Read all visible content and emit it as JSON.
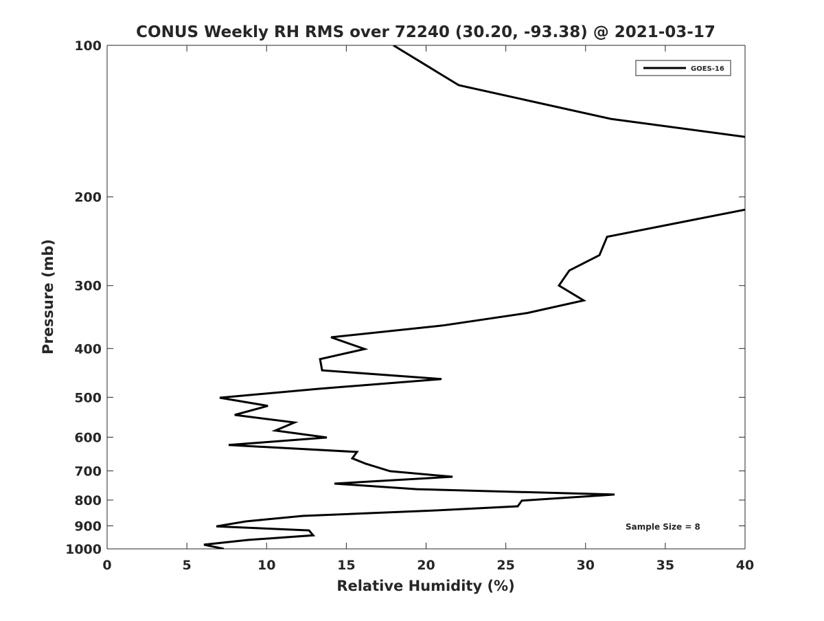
{
  "chart_data": {
    "type": "line",
    "title": "CONUS Weekly RH RMS over 72240 (30.20, -93.38) @ 2021-03-17",
    "xlabel": "Relative Humidity (%)",
    "ylabel": "Pressure (mb)",
    "xlim": [
      0,
      40
    ],
    "ylim": [
      100,
      1000
    ],
    "yscale": "log",
    "y_reversed": true,
    "xticks": [
      0,
      5,
      10,
      15,
      20,
      25,
      30,
      35,
      40
    ],
    "yticks": [
      100,
      200,
      300,
      400,
      500,
      600,
      700,
      800,
      900,
      1000
    ],
    "grid": false,
    "legend": {
      "placement": "top-right",
      "entries": [
        "GOES-16"
      ]
    },
    "annotation": "Sample Size = 8",
    "series": [
      {
        "name": "GOES-16",
        "color": "#000000",
        "note": "segments separated where values exceed the x-axis limit",
        "segments": [
          [
            [
              17.95,
              100
            ],
            [
              22.05,
              120
            ],
            [
              31.6,
              140
            ],
            [
              40,
              152
            ]
          ],
          [
            [
              40,
              212
            ],
            [
              31.35,
              240
            ],
            [
              30.87,
              261
            ],
            [
              28.98,
              280
            ],
            [
              28.33,
              300
            ],
            [
              29.88,
              321
            ],
            [
              26.35,
              340
            ],
            [
              21.05,
              360
            ],
            [
              14.04,
              380
            ],
            [
              16.15,
              401
            ],
            [
              13.35,
              420
            ],
            [
              13.48,
              442
            ],
            [
              20.97,
              460
            ],
            [
              13.26,
              481
            ],
            [
              7.06,
              501
            ],
            [
              10.08,
              520
            ],
            [
              8.0,
              542
            ],
            [
              11.75,
              561
            ],
            [
              10.55,
              582
            ],
            [
              13.78,
              601
            ],
            [
              7.62,
              622
            ],
            [
              15.67,
              642
            ],
            [
              15.37,
              661
            ],
            [
              16.19,
              677
            ],
            [
              17.74,
              701
            ],
            [
              21.66,
              719
            ],
            [
              14.25,
              742
            ],
            [
              19.42,
              761
            ],
            [
              31.82,
              780
            ],
            [
              26.0,
              802
            ],
            [
              25.75,
              823
            ],
            [
              20.5,
              839
            ],
            [
              12.27,
              860
            ],
            [
              8.7,
              882
            ],
            [
              6.85,
              902
            ],
            [
              12.66,
              919
            ],
            [
              12.92,
              940
            ],
            [
              8.83,
              960
            ],
            [
              6.07,
              981
            ],
            [
              7.32,
              1000
            ]
          ]
        ]
      }
    ]
  }
}
